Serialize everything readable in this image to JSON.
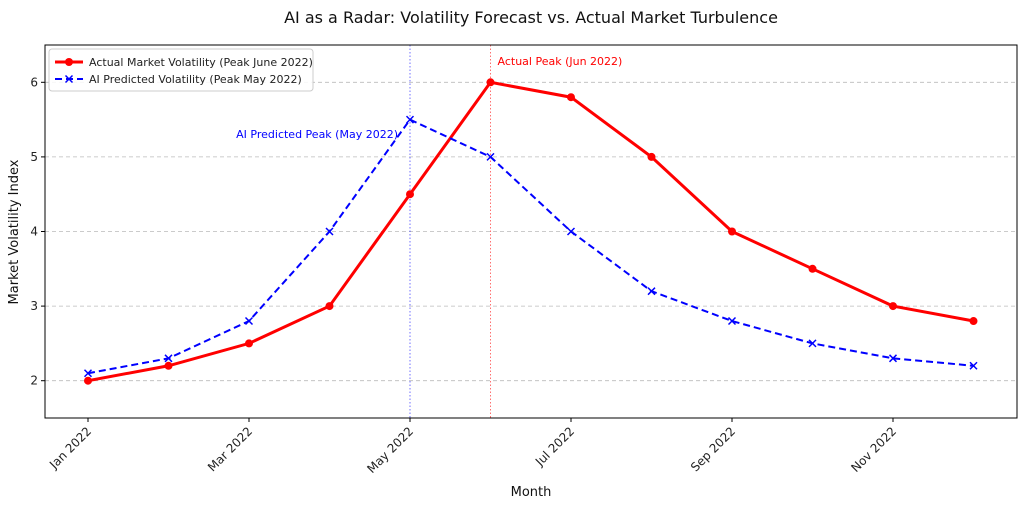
{
  "chart_data": {
    "type": "line",
    "title": "AI as a Radar: Volatility Forecast vs. Actual Market Turbulence",
    "xlabel": "Month",
    "ylabel": "Market Volatility Index",
    "x": [
      "2022-01",
      "2022-02",
      "2022-03",
      "2022-04",
      "2022-05",
      "2022-06",
      "2022-07",
      "2022-08",
      "2022-09",
      "2022-10",
      "2022-11",
      "2022-12"
    ],
    "xticks": [
      "Jan 2022",
      "Mar 2022",
      "May 2022",
      "Jul 2022",
      "Sep 2022",
      "Nov 2022"
    ],
    "xtick_months": [
      0,
      2,
      4,
      6,
      8,
      10
    ],
    "yticks": [
      2,
      3,
      4,
      5,
      6
    ],
    "ylim": [
      1.5,
      6.5
    ],
    "grid": "horizontal dashed",
    "legend_placement": "top-left",
    "series": [
      {
        "name": "Actual Market Volatility (Peak June 2022)",
        "color": "#ff0000",
        "style": "solid",
        "marker": "circle",
        "values": [
          2.0,
          2.2,
          2.5,
          3.0,
          4.5,
          6.0,
          5.8,
          5.0,
          4.0,
          3.5,
          3.0,
          2.8
        ]
      },
      {
        "name": "AI Predicted Volatility (Peak May 2022)",
        "color": "#0000ff",
        "style": "dashed",
        "marker": "x",
        "values": [
          2.1,
          2.3,
          2.8,
          4.0,
          5.5,
          5.0,
          4.0,
          3.2,
          2.8,
          2.5,
          2.3,
          2.2
        ]
      }
    ],
    "annotations": [
      {
        "text": "Actual Peak (Jun 2022)",
        "month_index": 5,
        "color": "#ff0000"
      },
      {
        "text": "AI Predicted Peak (May 2022)",
        "month_index": 4,
        "color": "#0000ff"
      }
    ]
  }
}
